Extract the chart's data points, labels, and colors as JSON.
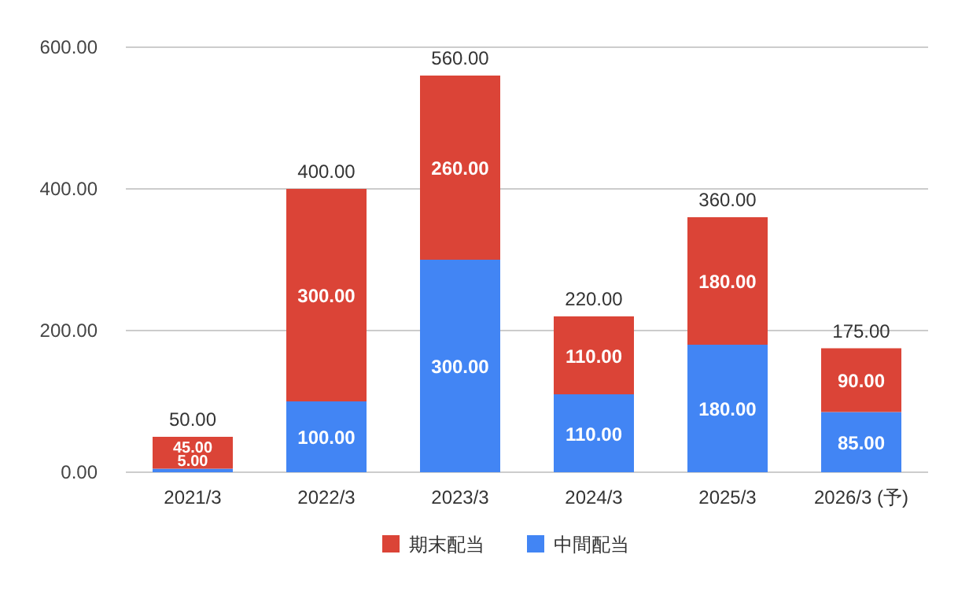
{
  "chart_data": {
    "type": "bar",
    "stacked": true,
    "categories": [
      "2021/3",
      "2022/3",
      "2023/3",
      "2024/3",
      "2025/3",
      "2026/3 (予)"
    ],
    "series": [
      {
        "name": "中間配当",
        "color": "#4285f4",
        "values": [
          5,
          100,
          300,
          110,
          180,
          85
        ],
        "value_labels": [
          "5.00",
          "100.00",
          "300.00",
          "110.00",
          "180.00",
          "85.00"
        ]
      },
      {
        "name": "期末配当",
        "color": "#db4437",
        "values": [
          45,
          300,
          260,
          110,
          180,
          90
        ],
        "value_labels": [
          "45.00",
          "300.00",
          "260.00",
          "110.00",
          "180.00",
          "90.00"
        ]
      }
    ],
    "totals": [
      "50.00",
      "400.00",
      "560.00",
      "220.00",
      "360.00",
      "175.00"
    ],
    "ylim": [
      0,
      600
    ],
    "yticks": [
      {
        "value": 0,
        "label": "0.00"
      },
      {
        "value": 200,
        "label": "200.00"
      },
      {
        "value": 400,
        "label": "400.00"
      },
      {
        "value": 600,
        "label": "600.00"
      }
    ],
    "grid": "y",
    "legend": "bottom"
  }
}
